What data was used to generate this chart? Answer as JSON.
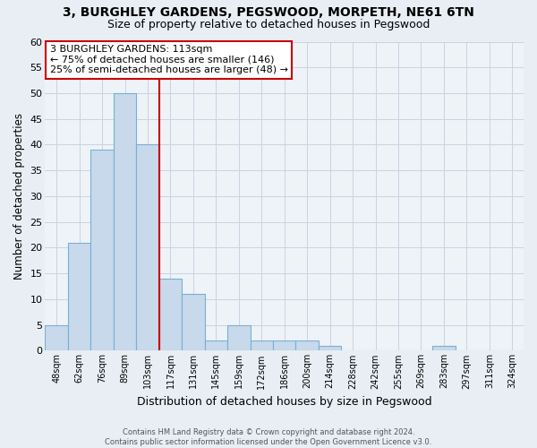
{
  "title": "3, BURGHLEY GARDENS, PEGSWOOD, MORPETH, NE61 6TN",
  "subtitle": "Size of property relative to detached houses in Pegswood",
  "xlabel": "Distribution of detached houses by size in Pegswood",
  "ylabel": "Number of detached properties",
  "footer_line1": "Contains HM Land Registry data © Crown copyright and database right 2024.",
  "footer_line2": "Contains public sector information licensed under the Open Government Licence v3.0.",
  "bin_labels": [
    "48sqm",
    "62sqm",
    "76sqm",
    "89sqm",
    "103sqm",
    "117sqm",
    "131sqm",
    "145sqm",
    "159sqm",
    "172sqm",
    "186sqm",
    "200sqm",
    "214sqm",
    "228sqm",
    "242sqm",
    "255sqm",
    "269sqm",
    "283sqm",
    "297sqm",
    "311sqm",
    "324sqm"
  ],
  "bar_values": [
    5,
    21,
    39,
    50,
    40,
    14,
    11,
    2,
    5,
    2,
    2,
    2,
    1,
    0,
    0,
    0,
    0,
    1,
    0,
    0,
    0
  ],
  "bar_color": "#c8d9ec",
  "bar_edgecolor": "#7aafd4",
  "vline_x": 5,
  "vline_color": "#cc0000",
  "ylim": [
    0,
    60
  ],
  "yticks": [
    0,
    5,
    10,
    15,
    20,
    25,
    30,
    35,
    40,
    45,
    50,
    55,
    60
  ],
  "annotation_title": "3 BURGHLEY GARDENS: 113sqm",
  "annotation_line1": "← 75% of detached houses are smaller (146)",
  "annotation_line2": "25% of semi-detached houses are larger (48) →",
  "annotation_box_color": "#ffffff",
  "annotation_box_edgecolor": "#cc0000",
  "background_color": "#e8eef4",
  "plot_bg_color": "#eef3f8",
  "grid_color": "#c8d4e0",
  "title_fontsize": 10,
  "subtitle_fontsize": 9
}
